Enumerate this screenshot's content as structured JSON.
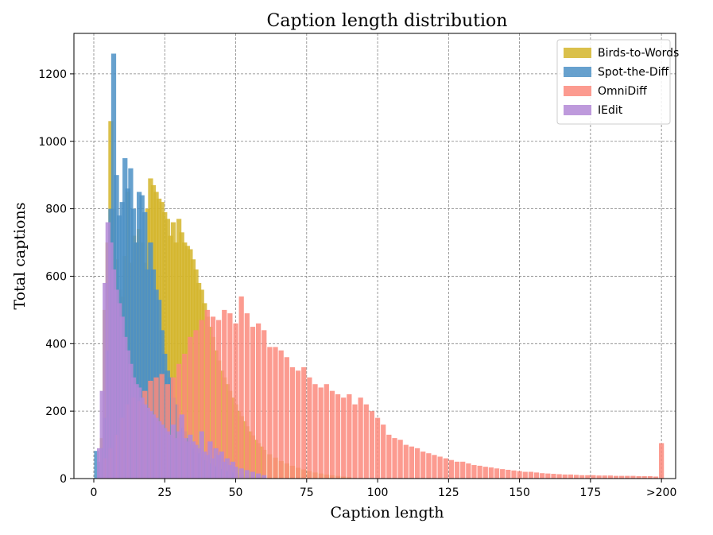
{
  "chart_data": {
    "type": "bar",
    "title": "Caption length distribution",
    "xlabel": "Caption length",
    "ylabel": "Total captions",
    "xlim": [
      -7,
      205
    ],
    "ylim": [
      0,
      1320
    ],
    "xticks": [
      0,
      25,
      50,
      75,
      100,
      125,
      150,
      175,
      200
    ],
    "xtick_labels": [
      "0",
      "25",
      "50",
      "75",
      "100",
      "125",
      "150",
      "175",
      ">200"
    ],
    "yticks": [
      0,
      200,
      400,
      600,
      800,
      1000,
      1200
    ],
    "grid": true,
    "legend_position": "top-right",
    "bar_width": 1.75,
    "series": [
      {
        "name": "Birds-to-Words",
        "color": "#d4b52c",
        "x": [
          2,
          3,
          4,
          5,
          6,
          7,
          8,
          9,
          10,
          11,
          12,
          13,
          14,
          15,
          16,
          17,
          18,
          19,
          20,
          21,
          22,
          23,
          24,
          25,
          26,
          27,
          28,
          29,
          30,
          31,
          32,
          33,
          34,
          35,
          36,
          37,
          38,
          39,
          40,
          41,
          42,
          43,
          44,
          45,
          46,
          47,
          48,
          49,
          50,
          51,
          52,
          53,
          54,
          55,
          56,
          57,
          58,
          59,
          60,
          62,
          64,
          66,
          68,
          70,
          72,
          74,
          76,
          78,
          80,
          82,
          84,
          86,
          88,
          90
        ],
        "values": [
          10,
          120,
          500,
          700,
          1060,
          800,
          650,
          560,
          540,
          660,
          850,
          640,
          720,
          700,
          740,
          700,
          640,
          800,
          890,
          870,
          850,
          830,
          820,
          790,
          770,
          720,
          760,
          700,
          770,
          730,
          700,
          690,
          680,
          650,
          620,
          580,
          560,
          520,
          480,
          450,
          420,
          380,
          350,
          320,
          300,
          280,
          260,
          240,
          220,
          200,
          185,
          170,
          155,
          140,
          128,
          115,
          105,
          95,
          85,
          72,
          62,
          52,
          45,
          38,
          32,
          27,
          22,
          18,
          15,
          12,
          10,
          8,
          6,
          4
        ]
      },
      {
        "name": "Spot-the-Diff",
        "color": "#4c91c5",
        "x": [
          1,
          2,
          3,
          4,
          5,
          6,
          7,
          8,
          9,
          10,
          11,
          12,
          13,
          14,
          15,
          16,
          17,
          18,
          19,
          20,
          21,
          22,
          23,
          24,
          25,
          26,
          27,
          28,
          29,
          30,
          31,
          32,
          33,
          34,
          35,
          36,
          37,
          38,
          39,
          40,
          41,
          42,
          43,
          44,
          45,
          46,
          47,
          48,
          49,
          50,
          52,
          54,
          56,
          58,
          60
        ],
        "values": [
          82,
          50,
          90,
          180,
          380,
          800,
          1260,
          900,
          780,
          820,
          950,
          860,
          920,
          800,
          700,
          850,
          840,
          790,
          620,
          700,
          620,
          560,
          530,
          440,
          370,
          320,
          300,
          240,
          220,
          180,
          150,
          140,
          120,
          100,
          90,
          80,
          75,
          65,
          55,
          50,
          45,
          40,
          36,
          32,
          28,
          25,
          22,
          20,
          18,
          16,
          13,
          10,
          8,
          6,
          4
        ]
      },
      {
        "name": "OmniDiff",
        "color": "#fb8a7c",
        "x": [
          4,
          6,
          8,
          10,
          12,
          14,
          16,
          18,
          20,
          22,
          24,
          26,
          28,
          30,
          32,
          34,
          36,
          38,
          40,
          42,
          44,
          46,
          48,
          50,
          52,
          54,
          56,
          58,
          60,
          62,
          64,
          66,
          68,
          70,
          72,
          74,
          76,
          78,
          80,
          82,
          84,
          86,
          88,
          90,
          92,
          94,
          96,
          98,
          100,
          102,
          104,
          106,
          108,
          110,
          112,
          114,
          116,
          118,
          120,
          122,
          124,
          126,
          128,
          130,
          132,
          134,
          136,
          138,
          140,
          142,
          144,
          146,
          148,
          150,
          152,
          154,
          156,
          158,
          160,
          162,
          164,
          166,
          168,
          170,
          172,
          174,
          176,
          178,
          180,
          182,
          184,
          186,
          188,
          190,
          192,
          194,
          196,
          198,
          200
        ],
        "values": [
          60,
          90,
          130,
          180,
          220,
          240,
          230,
          260,
          290,
          300,
          310,
          280,
          300,
          340,
          370,
          420,
          440,
          470,
          500,
          480,
          470,
          500,
          490,
          460,
          540,
          490,
          450,
          460,
          440,
          390,
          390,
          380,
          360,
          330,
          320,
          330,
          300,
          280,
          270,
          280,
          260,
          250,
          240,
          250,
          220,
          240,
          220,
          200,
          180,
          160,
          130,
          120,
          115,
          100,
          95,
          90,
          80,
          75,
          70,
          65,
          60,
          55,
          50,
          50,
          45,
          40,
          38,
          35,
          33,
          30,
          28,
          26,
          24,
          22,
          20,
          20,
          18,
          16,
          15,
          14,
          13,
          12,
          12,
          11,
          10,
          10,
          10,
          9,
          9,
          9,
          8,
          8,
          8,
          8,
          7,
          7,
          7,
          6,
          105
        ]
      },
      {
        "name": "IEdit",
        "color": "#b388d6",
        "x": [
          2,
          3,
          4,
          5,
          6,
          7,
          8,
          9,
          10,
          11,
          12,
          13,
          14,
          15,
          16,
          17,
          18,
          19,
          20,
          21,
          22,
          23,
          24,
          25,
          26,
          27,
          28,
          29,
          30,
          31,
          32,
          33,
          34,
          35,
          36,
          37,
          38,
          39,
          40,
          41,
          42,
          43,
          44,
          45,
          46,
          47,
          48,
          49,
          50,
          52,
          54,
          56,
          58,
          60
        ],
        "values": [
          90,
          260,
          580,
          760,
          700,
          620,
          560,
          520,
          480,
          420,
          380,
          340,
          300,
          280,
          270,
          240,
          220,
          210,
          200,
          190,
          180,
          170,
          160,
          150,
          140,
          130,
          160,
          120,
          140,
          190,
          120,
          110,
          130,
          110,
          100,
          90,
          140,
          80,
          70,
          110,
          60,
          90,
          70,
          80,
          50,
          60,
          40,
          50,
          35,
          30,
          25,
          20,
          15,
          10
        ]
      }
    ]
  }
}
